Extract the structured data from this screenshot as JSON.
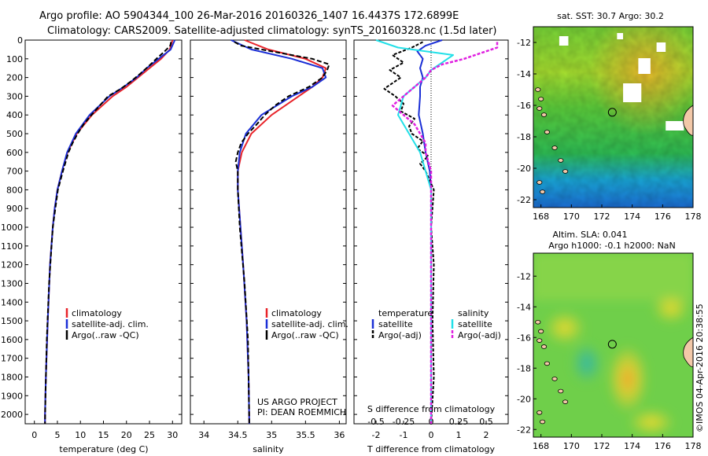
{
  "header": {
    "line1": "Argo profile: AO 5904344_100 26-Mar-2016 20160326_1407 16.4437S 172.6899E",
    "line2": "Climatology: CARS2009. Satellite-adjusted climatology: synTS_20160328.nc (1.5d later)"
  },
  "colors": {
    "climatology": "#e8242a",
    "satellite": "#1b2fd6",
    "argo": "#000000",
    "temp_satellite": "#1b2fd6",
    "sal_satellite": "#22e0e8",
    "sal_argo": "#e020e0"
  },
  "chart_data": [
    {
      "id": "temperature",
      "type": "line",
      "xlabel": "temperature (deg C)",
      "ylabel": "depth",
      "xlim": [
        -2,
        32
      ],
      "ylim": [
        2050,
        0
      ],
      "xticks": [
        0,
        5,
        10,
        15,
        20,
        25,
        30
      ],
      "yticks": [
        0,
        100,
        200,
        300,
        400,
        500,
        600,
        700,
        800,
        900,
        1000,
        1100,
        1200,
        1300,
        1400,
        1500,
        1600,
        1700,
        1800,
        1900,
        2000
      ],
      "series": [
        {
          "name": "climatology",
          "depth": [
            0,
            50,
            100,
            150,
            200,
            250,
            300,
            400,
            500,
            600,
            700,
            800,
            900,
            1000,
            1200,
            1500,
            1800,
            2000,
            2050
          ],
          "values": [
            30.0,
            29.4,
            27.5,
            25.0,
            22.5,
            20.0,
            17.0,
            12.5,
            9.2,
            7.2,
            6.0,
            5.0,
            4.4,
            4.0,
            3.4,
            2.9,
            2.5,
            2.3,
            2.3
          ]
        },
        {
          "name": "satellite-adj. clim.",
          "depth": [
            0,
            50,
            100,
            150,
            200,
            250,
            300,
            400,
            500,
            600,
            700,
            800,
            900,
            1000,
            1200,
            1500,
            1800,
            2000,
            2050
          ],
          "values": [
            30.5,
            29.6,
            27.0,
            24.4,
            22.2,
            19.4,
            16.3,
            12.0,
            9.0,
            7.1,
            6.0,
            5.0,
            4.4,
            4.0,
            3.4,
            2.9,
            2.5,
            2.3,
            2.3
          ]
        },
        {
          "name": "Argo(..raw -QC)",
          "depth": [
            10,
            30,
            60,
            100,
            140,
            180,
            220,
            260,
            300,
            350,
            400,
            450,
            500,
            550,
            600,
            650,
            700,
            800,
            1000,
            1300,
            1600,
            1900,
            2050
          ],
          "values": [
            29.7,
            29.5,
            28.3,
            26.5,
            24.8,
            23.0,
            21.0,
            18.8,
            16.0,
            14.2,
            12.4,
            10.7,
            9.4,
            8.3,
            7.4,
            6.8,
            6.2,
            5.1,
            4.0,
            3.2,
            2.7,
            2.4,
            2.3
          ]
        }
      ],
      "legend": [
        "climatology",
        "satellite-adj. clim.",
        "Argo(..raw -QC)"
      ]
    },
    {
      "id": "salinity",
      "type": "line",
      "xlabel": "salinity",
      "ylabel": "depth",
      "xlim": [
        33.8,
        36.1
      ],
      "ylim": [
        2050,
        0
      ],
      "xticks": [
        34,
        34.5,
        35,
        35.5,
        36
      ],
      "xticklabels": [
        "34",
        "34.5",
        "35",
        "35.5",
        "36"
      ],
      "series": [
        {
          "name": "climatology",
          "depth": [
            0,
            50,
            100,
            150,
            200,
            250,
            300,
            400,
            500,
            600,
            700,
            800,
            900,
            1000,
            1200,
            1500,
            1800,
            2050
          ],
          "values": [
            34.6,
            34.95,
            35.5,
            35.8,
            35.75,
            35.6,
            35.4,
            35.0,
            34.7,
            34.56,
            34.5,
            34.5,
            34.52,
            34.54,
            34.58,
            34.63,
            34.66,
            34.67
          ]
        },
        {
          "name": "satellite-adj. clim.",
          "depth": [
            0,
            50,
            100,
            150,
            200,
            250,
            300,
            400,
            500,
            600,
            700,
            800,
            900,
            1000,
            1200,
            1500,
            1800,
            2050
          ],
          "values": [
            34.4,
            34.7,
            35.3,
            35.75,
            35.8,
            35.6,
            35.3,
            34.85,
            34.62,
            34.53,
            34.5,
            34.5,
            34.52,
            34.54,
            34.58,
            34.63,
            34.66,
            34.67
          ]
        },
        {
          "name": "Argo(..raw -QC)",
          "depth": [
            10,
            30,
            60,
            100,
            130,
            160,
            200,
            250,
            300,
            350,
            400,
            450,
            500,
            550,
            600,
            650,
            700,
            800,
            1000,
            1300,
            1600,
            2050
          ],
          "values": [
            34.45,
            34.55,
            35.0,
            35.6,
            35.85,
            35.82,
            35.75,
            35.55,
            35.25,
            35.05,
            34.9,
            34.78,
            34.65,
            34.55,
            34.5,
            34.47,
            34.5,
            34.5,
            34.53,
            34.6,
            34.65,
            34.67
          ]
        }
      ],
      "legend": [
        "climatology",
        "satellite-adj. clim.",
        "Argo(..raw -QC)"
      ],
      "annotation": [
        "US ARGO PROJECT",
        "PI: DEAN ROEMMICH"
      ]
    },
    {
      "id": "difference",
      "type": "line",
      "xlabel": "T difference from climatology",
      "xlabel2": "S difference from climatology",
      "xlim": [
        -2.8,
        2.8
      ],
      "ylim": [
        2050,
        0
      ],
      "xticks": [
        -2,
        -1,
        0,
        1,
        2
      ],
      "sticks": [
        -0.5,
        -0.25,
        0,
        0.25,
        0.5
      ],
      "sticklabels": [
        "-0.5",
        "-0.25",
        "0",
        "0.25",
        "0.5"
      ],
      "series": [
        {
          "name": "temperature satellite",
          "depth": [
            0,
            30,
            60,
            100,
            150,
            200,
            250,
            300,
            400,
            500,
            600,
            700,
            800,
            1000,
            1500,
            2050
          ],
          "values": [
            0.4,
            -0.2,
            -0.5,
            -0.3,
            -0.4,
            -0.3,
            -0.4,
            -0.4,
            -0.45,
            -0.3,
            -0.2,
            -0.05,
            0.0,
            0.0,
            0.0,
            0.0
          ]
        },
        {
          "name": "temperature Argo(-adj)",
          "depth": [
            10,
            40,
            80,
            120,
            160,
            200,
            260,
            300,
            340,
            380,
            420,
            460,
            500,
            540,
            580,
            620,
            660,
            700,
            800,
            1000,
            1200,
            1500,
            1800,
            2050
          ],
          "values": [
            -0.3,
            -0.7,
            -1.4,
            -1.0,
            -1.5,
            -1.1,
            -1.7,
            -1.3,
            -1.0,
            -1.1,
            -0.6,
            -0.8,
            -0.7,
            -0.3,
            -0.5,
            -0.1,
            -0.4,
            -0.2,
            0.1,
            0.0,
            0.1,
            0.05,
            0.1,
            0.0
          ]
        },
        {
          "name": "salinity satellite",
          "depth": [
            0,
            40,
            80,
            120,
            160,
            200,
            250,
            300,
            400,
            500,
            600,
            700,
            800,
            1000,
            1500,
            2050
          ],
          "values": [
            -0.5,
            -0.3,
            0.2,
            0.1,
            0.0,
            -0.05,
            -0.15,
            -0.25,
            -0.3,
            -0.2,
            -0.1,
            -0.05,
            0.0,
            0.0,
            0.0,
            0.0
          ]
        },
        {
          "name": "salinity Argo(-adj)",
          "depth": [
            10,
            40,
            80,
            100,
            130,
            160,
            200,
            250,
            300,
            350,
            400,
            450,
            500,
            550,
            600,
            700,
            800,
            1000,
            1200,
            1500,
            1800,
            2050
          ],
          "values": [
            0.6,
            0.6,
            0.4,
            0.3,
            0.1,
            0.0,
            -0.05,
            -0.15,
            -0.25,
            -0.35,
            -0.25,
            -0.15,
            -0.1,
            -0.05,
            -0.05,
            0.0,
            0.0,
            0.0,
            0.0,
            0.0,
            0.0,
            0.0
          ]
        }
      ],
      "legend_groups": [
        {
          "title": "temperature",
          "items": [
            "satellite",
            "Argo(-adj)"
          ]
        },
        {
          "title": "salinity",
          "items": [
            "satellite",
            "Argo(-adj)"
          ]
        }
      ]
    },
    {
      "id": "sst_map",
      "type": "heatmap",
      "title": "sat. SST: 30.7  Argo: 30.2",
      "xlim": [
        167.5,
        178
      ],
      "ylim": [
        -22.5,
        -11
      ],
      "xticks": [
        168,
        170,
        172,
        174,
        176,
        178
      ],
      "yticks": [
        -12,
        -14,
        -16,
        -18,
        -20,
        -22
      ],
      "marker": {
        "lon": 172.69,
        "lat": -16.44
      },
      "missing_patches": [
        [
          173.4,
          -14.6,
          1.2,
          1.2
        ],
        [
          176.2,
          -17.0,
          1.2,
          0.6
        ],
        [
          174.4,
          -13.0,
          0.8,
          1.0
        ],
        [
          169.2,
          -11.6,
          0.6,
          0.6
        ],
        [
          175.6,
          -12.0,
          0.6,
          0.6
        ],
        [
          173.0,
          -11.4,
          0.4,
          0.4
        ]
      ]
    },
    {
      "id": "sla_map",
      "type": "heatmap",
      "title": "Altim. SLA: 0.041",
      "subtitle": "Argo h1000: -0.1  h2000: NaN",
      "xlim": [
        167.5,
        178
      ],
      "ylim": [
        -22.5,
        -10.5
      ],
      "xticks": [
        168,
        170,
        172,
        174,
        176,
        178
      ],
      "yticks": [
        -12,
        -14,
        -16,
        -18,
        -20,
        -22
      ],
      "marker": {
        "lon": 172.69,
        "lat": -16.44
      }
    }
  ],
  "credit": "©IMOS 04-Apr-2016 20:38:55"
}
